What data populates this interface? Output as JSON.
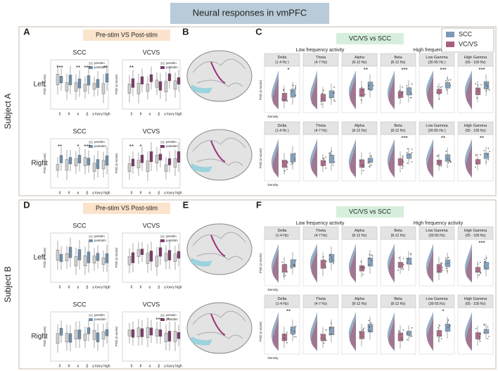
{
  "title": "Neural responses in vmPFC",
  "common": {
    "x_labels": [
      "δ",
      "θ",
      "α",
      "β",
      "γ low",
      "γ high"
    ],
    "y_label": "PSD (z-score)",
    "density": "Density",
    "legend_pre": [
      "prestim",
      "poststim"
    ]
  },
  "subjects": [
    {
      "label": "Subject A",
      "panel_a": {
        "letter": "A",
        "heading": "Pre-stim VS Post-stim",
        "rows": [
          {
            "label": "Left",
            "plots": [
              {
                "title": "SCC",
                "stars": [
                  "***",
                  null,
                  "**",
                  "***",
                  null,
                  "**"
                ]
              },
              {
                "title": "VCVS",
                "stars": [
                  "**",
                  null,
                  null,
                  null,
                  null,
                  null
                ]
              }
            ]
          },
          {
            "label": "Right",
            "plots": [
              {
                "title": "SCC",
                "stars": [
                  "**",
                  null,
                  "*",
                  "***",
                  null,
                  null
                ]
              },
              {
                "title": "VCVS",
                "stars": [
                  "**",
                  "*",
                  null,
                  null,
                  null,
                  null
                ]
              }
            ]
          }
        ]
      },
      "panel_b": {
        "letter": "B"
      },
      "panel_c": {
        "letter": "C",
        "heading": "VC/VS vs SCC",
        "groups": [
          "Low frequency activity",
          "High frequency activity"
        ],
        "legend": [
          {
            "name": "SCC",
            "color": "#7b98b5"
          },
          {
            "name": "VC/VS",
            "color": "#a5607f"
          }
        ],
        "bands": [
          {
            "name": "Delta",
            "range": "(1-4 Hz )"
          },
          {
            "name": "Theta",
            "range": "(4-7 Hz)"
          },
          {
            "name": "Alpha",
            "range": "(8-12 Hz)"
          },
          {
            "name": "Beta",
            "range": "(8-12 Hz)"
          },
          {
            "name": "Low Gamma",
            "range": "(30-55 Hz )"
          },
          {
            "name": "High Gamma",
            "range": "(65 - 100 Hz)"
          }
        ],
        "rows": [
          {
            "stars": [
              "*",
              null,
              "**",
              "***",
              "***",
              "***"
            ]
          },
          {
            "stars": [
              null,
              null,
              null,
              "***",
              "**",
              "**"
            ]
          }
        ]
      }
    },
    {
      "label": "Subject B",
      "panel_a": {
        "letter": "D",
        "heading": "Pre-stim VS Post-stim",
        "rows": [
          {
            "label": "Left",
            "plots": [
              {
                "title": "SCC",
                "stars": [
                  null,
                  null,
                  null,
                  null,
                  null,
                  null
                ]
              },
              {
                "title": "VCVS",
                "stars": [
                  null,
                  null,
                  null,
                  null,
                  null,
                  null
                ]
              }
            ]
          },
          {
            "label": "Right",
            "plots": [
              {
                "title": "SCC",
                "stars": [
                  null,
                  null,
                  null,
                  null,
                  null,
                  null
                ]
              },
              {
                "title": "VCVS",
                "stars": [
                  null,
                  null,
                  null,
                  "***",
                  "*",
                  null
                ]
              }
            ]
          }
        ]
      },
      "panel_b": {
        "letter": "E"
      },
      "panel_c": {
        "letter": "F",
        "heading": "VC/VS vs SCC",
        "groups": [
          "Low frequency activity",
          "High frequency activity"
        ],
        "bands": [
          {
            "name": "Delta",
            "range": "(1-4 Hz)"
          },
          {
            "name": "Theta",
            "range": "(4-7 Hz)"
          },
          {
            "name": "Alpha",
            "range": "(8-12 Hz)"
          },
          {
            "name": "Beta",
            "range": "(8-12 Hz)"
          },
          {
            "name": "Low Gamma",
            "range": "(30-55 Hz)"
          },
          {
            "name": "High Gamma",
            "range": "(65 - 100 Hz)"
          }
        ],
        "rows": [
          {
            "stars": [
              null,
              null,
              null,
              null,
              null,
              "***"
            ]
          },
          {
            "stars": [
              "**",
              null,
              null,
              null,
              "*",
              null
            ]
          }
        ]
      }
    }
  ]
}
